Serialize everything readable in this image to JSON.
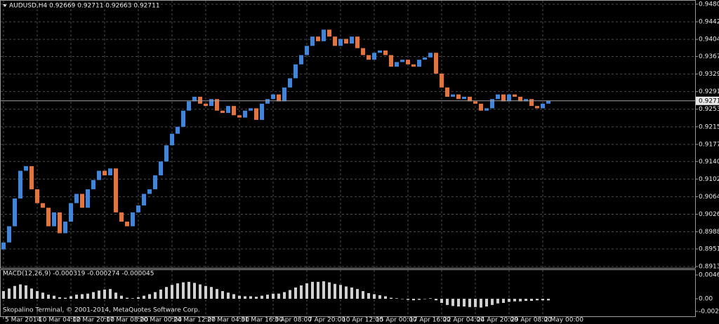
{
  "chart_data": [
    {
      "type": "candlestick",
      "title": "AUDUSD,H4  0.92669 0.92711 0.92663 0.92711",
      "categories": [
        "5 Mar 2014",
        null,
        null,
        null,
        null,
        null,
        "10 Mar 04:00",
        null,
        null,
        null,
        null,
        null,
        "12 Mar 20:00",
        null,
        null,
        null,
        null,
        null,
        "17 Mar 08:00",
        null,
        null,
        null,
        null,
        null,
        "20 Mar 00:00",
        null,
        null,
        null,
        null,
        null,
        "24 Mar 12:00",
        null,
        null,
        null,
        null,
        null,
        "27 Mar 04:00",
        null,
        null,
        null,
        null,
        null,
        "31 Mar 16:00",
        null,
        null,
        null,
        null,
        null,
        "3 Apr 08:00",
        null,
        null,
        null,
        null,
        null,
        "7 Apr 20:00",
        null,
        null,
        null,
        null,
        null,
        "10 Apr 12:00",
        null,
        null,
        null,
        null,
        null,
        "15 Apr 00:00",
        null,
        null,
        null,
        null,
        null,
        "17 Apr 16:00",
        null,
        null,
        null,
        null,
        null,
        "22 Apr 04:00",
        null,
        null,
        null,
        null,
        null,
        "24 Apr 20:00",
        null,
        null,
        null,
        null,
        null,
        "29 Apr 08:00",
        null,
        null,
        null,
        null,
        null,
        "2 May 00:00",
        null
      ],
      "open": [
        0.895,
        0.8965,
        0.9,
        0.906,
        0.912,
        0.913,
        0.908,
        0.905,
        0.904,
        0.9,
        0.903,
        0.8985,
        0.901,
        0.905,
        0.907,
        0.904,
        0.908,
        0.91,
        0.912,
        0.911,
        0.9125,
        0.903,
        0.901,
        0.9,
        0.903,
        0.9045,
        0.907,
        0.908,
        0.911,
        0.914,
        0.9175,
        0.92,
        0.9215,
        0.925,
        0.927,
        0.928,
        0.9265,
        0.926,
        0.9275,
        0.925,
        0.9245,
        0.926,
        0.924,
        0.9235,
        0.925,
        0.9255,
        0.923,
        0.9265,
        0.9275,
        0.9285,
        0.927,
        0.93,
        0.932,
        0.935,
        0.937,
        0.939,
        0.941,
        0.94,
        0.9425,
        0.941,
        0.939,
        0.9405,
        0.9395,
        0.941,
        0.9385,
        0.937,
        0.936,
        0.9375,
        0.938,
        0.937,
        0.9345,
        0.9355,
        0.936,
        0.935,
        0.9345,
        0.936,
        0.9365,
        0.9375,
        0.933,
        0.93,
        0.928,
        0.9285,
        0.9275,
        0.928,
        0.927,
        0.9265,
        0.925,
        0.9255,
        0.9275,
        0.9285,
        0.927,
        0.9285,
        0.928,
        0.927,
        0.9275,
        0.926,
        0.9255,
        0.9265
      ],
      "close": [
        0.8965,
        0.9,
        0.906,
        0.912,
        0.913,
        0.908,
        0.905,
        0.904,
        0.9,
        0.903,
        0.8985,
        0.901,
        0.905,
        0.907,
        0.904,
        0.908,
        0.91,
        0.912,
        0.911,
        0.9125,
        0.903,
        0.901,
        0.9,
        0.903,
        0.9045,
        0.907,
        0.908,
        0.911,
        0.914,
        0.9175,
        0.92,
        0.9215,
        0.925,
        0.927,
        0.928,
        0.9265,
        0.926,
        0.9275,
        0.925,
        0.9245,
        0.926,
        0.924,
        0.9235,
        0.925,
        0.9255,
        0.923,
        0.9265,
        0.9275,
        0.9285,
        0.927,
        0.93,
        0.932,
        0.935,
        0.937,
        0.939,
        0.941,
        0.94,
        0.9425,
        0.941,
        0.939,
        0.9405,
        0.9395,
        0.941,
        0.9385,
        0.937,
        0.936,
        0.9375,
        0.938,
        0.937,
        0.9345,
        0.9355,
        0.936,
        0.935,
        0.9345,
        0.936,
        0.9365,
        0.9375,
        0.933,
        0.93,
        0.928,
        0.9285,
        0.9275,
        0.928,
        0.927,
        0.9265,
        0.925,
        0.9255,
        0.9275,
        0.9285,
        0.927,
        0.9285,
        0.928,
        0.927,
        0.9275,
        0.926,
        0.9255,
        0.9265,
        0.92711
      ],
      "up_color": "#3d86e0",
      "down_color": "#e8733a",
      "last_price": 0.92711,
      "ylim": [
        0.89085,
        0.94891
      ],
      "yticks": [
        {
          "value": 0.948,
          "label": "0.94800"
        },
        {
          "value": 0.9442,
          "label": "0.94420"
        },
        {
          "value": 0.9404,
          "label": "0.94040"
        },
        {
          "value": 0.9367,
          "label": "0.93670"
        },
        {
          "value": 0.9329,
          "label": "0.93290"
        },
        {
          "value": 0.9291,
          "label": "0.92910"
        },
        {
          "value": 0.9253,
          "label": "0.92530"
        },
        {
          "value": 0.9215,
          "label": "0.92150"
        },
        {
          "value": 0.9177,
          "label": "0.91770"
        },
        {
          "value": 0.914,
          "label": "0.91400"
        },
        {
          "value": 0.9102,
          "label": "0.91020"
        },
        {
          "value": 0.9064,
          "label": "0.90640"
        },
        {
          "value": 0.9026,
          "label": "0.90260"
        },
        {
          "value": 0.8988,
          "label": "0.89880"
        },
        {
          "value": 0.8951,
          "label": "0.89510"
        },
        {
          "value": 0.8913,
          "label": "0.89130"
        }
      ],
      "grid": true
    },
    {
      "type": "bar",
      "title": "MACD(12,26,9) -0.000319 -0.000274 -0.000045",
      "values": [
        0.0015,
        0.002,
        0.0025,
        0.0028,
        0.0026,
        0.002,
        0.0015,
        0.0012,
        0.0008,
        0.0006,
        0.0003,
        0.0002,
        0.0005,
        0.0008,
        0.0009,
        0.001,
        0.0013,
        0.0016,
        0.0018,
        0.0019,
        0.0012,
        0.0006,
        0.0002,
        0.0001,
        0.0003,
        0.0006,
        0.0009,
        0.0013,
        0.0018,
        0.0023,
        0.0027,
        0.003,
        0.0032,
        0.0033,
        0.0031,
        0.0028,
        0.0025,
        0.0023,
        0.0019,
        0.0015,
        0.0012,
        0.0009,
        0.0006,
        0.0005,
        0.0005,
        0.0004,
        0.0006,
        0.0008,
        0.001,
        0.001,
        0.0013,
        0.0017,
        0.0022,
        0.0026,
        0.003,
        0.0033,
        0.0033,
        0.0034,
        0.0032,
        0.0029,
        0.0027,
        0.0024,
        0.0022,
        0.0019,
        0.0015,
        0.0011,
        0.0009,
        0.0007,
        0.0005,
        0.0002,
        0.0001,
        0,
        -0.0002,
        -0.0003,
        -0.0002,
        0,
        0.0001,
        -0.0003,
        -0.0008,
        -0.0012,
        -0.0014,
        -0.0015,
        -0.0015,
        -0.0016,
        -0.0016,
        -0.0017,
        -0.0015,
        -0.0012,
        -0.0009,
        -0.0008,
        -0.0006,
        -0.0005,
        -0.0005,
        -0.0004,
        -0.0004,
        -0.0003,
        -0.0003,
        -0.000319
      ],
      "color": "#d0d0d0",
      "ylim": [
        -0.0034,
        0.0056
      ],
      "yticks": [
        {
          "value": 0.004637,
          "label": "0.004637"
        },
        {
          "value": 0,
          "label": "0.00"
        },
        {
          "value": -0.002448,
          "label": "-0.002448"
        }
      ],
      "footer": "Skopalino Terminal, © 2001-2014, MetaQuotes Software Corp."
    }
  ]
}
